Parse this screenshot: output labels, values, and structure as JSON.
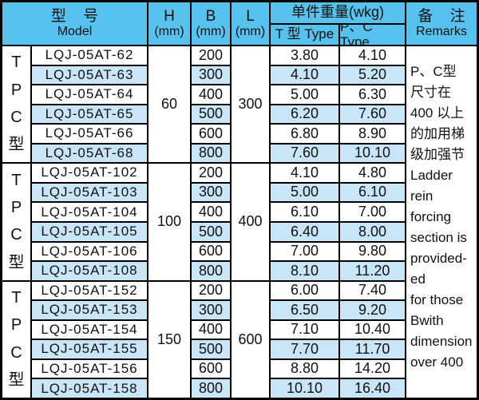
{
  "table": {
    "header": {
      "model": {
        "zh": "型 号",
        "en": "Model"
      },
      "h": {
        "line1": "H",
        "line2": "(mm)"
      },
      "b": {
        "line1": "B",
        "line2": "(mm)"
      },
      "l": {
        "line1": "L",
        "line2": "(mm)"
      },
      "weight": {
        "title": "单件重量(wkg)",
        "sub_t": "T 型 Type",
        "sub_pc": "P、C Type"
      },
      "remarks": {
        "zh": "备 注",
        "en": "Remarks"
      }
    },
    "groups": [
      {
        "side_label": [
          "T",
          "P",
          "C",
          "型"
        ],
        "h": "60",
        "l": "300",
        "rows": [
          {
            "model": "LQJ-05AT-62",
            "b": "200",
            "t_type": "3.80",
            "pc_type": "4.10"
          },
          {
            "model": "LQJ-05AT-63",
            "b": "300",
            "t_type": "4.10",
            "pc_type": "5.20"
          },
          {
            "model": "LQJ-05AT-64",
            "b": "400",
            "t_type": "5.00",
            "pc_type": "6.30"
          },
          {
            "model": "LQJ-05AT-65",
            "b": "500",
            "t_type": "6.20",
            "pc_type": "7.60"
          },
          {
            "model": "LQJ-05AT-66",
            "b": "600",
            "t_type": "6.80",
            "pc_type": "8.90"
          },
          {
            "model": "LQJ-05AT-68",
            "b": "800",
            "t_type": "7.60",
            "pc_type": "10.10"
          }
        ]
      },
      {
        "side_label": [
          "T",
          "P",
          "C",
          "型"
        ],
        "h": "100",
        "l": "400",
        "rows": [
          {
            "model": "LQJ-05AT-102",
            "b": "200",
            "t_type": "4.10",
            "pc_type": "4.80"
          },
          {
            "model": "LQJ-05AT-103",
            "b": "300",
            "t_type": "5.00",
            "pc_type": "6.10"
          },
          {
            "model": "LQJ-05AT-104",
            "b": "400",
            "t_type": "6.10",
            "pc_type": "7.00"
          },
          {
            "model": "LQJ-05AT-105",
            "b": "500",
            "t_type": "6.40",
            "pc_type": "8.00"
          },
          {
            "model": "LQJ-05AT-106",
            "b": "600",
            "t_type": "7.00",
            "pc_type": "9.80"
          },
          {
            "model": "LQJ-05AT-108",
            "b": "800",
            "t_type": "8.10",
            "pc_type": "11.20"
          }
        ]
      },
      {
        "side_label": [
          "T",
          "P",
          "C",
          "型"
        ],
        "h": "150",
        "l": "600",
        "rows": [
          {
            "model": "LQJ-05AT-152",
            "b": "200",
            "t_type": "6.00",
            "pc_type": "7.40"
          },
          {
            "model": "LQJ-05AT-153",
            "b": "300",
            "t_type": "6.50",
            "pc_type": "9.20"
          },
          {
            "model": "LQJ-05AT-154",
            "b": "400",
            "t_type": "7.10",
            "pc_type": "10.40"
          },
          {
            "model": "LQJ-05AT-155",
            "b": "500",
            "t_type": "7.70",
            "pc_type": "11.70"
          },
          {
            "model": "LQJ-05AT-156",
            "b": "600",
            "t_type": "8.80",
            "pc_type": "14.20"
          },
          {
            "model": "LQJ-05AT-158",
            "b": "800",
            "t_type": "10.10",
            "pc_type": "16.40"
          }
        ]
      }
    ],
    "remarks_lines": [
      "P、C型",
      "尺寸在",
      "400 以上",
      "的加用梯",
      "级加强节",
      "Ladder",
      "rein",
      "forcing",
      "section is",
      "provided-",
      "ed",
      "for those",
      "Bwith",
      "dimension",
      "over 400"
    ]
  },
  "colors": {
    "header_bg": "#58c2ef",
    "stripe_bg": "#c9e6f8",
    "border": "#000000",
    "text": "#111111"
  }
}
